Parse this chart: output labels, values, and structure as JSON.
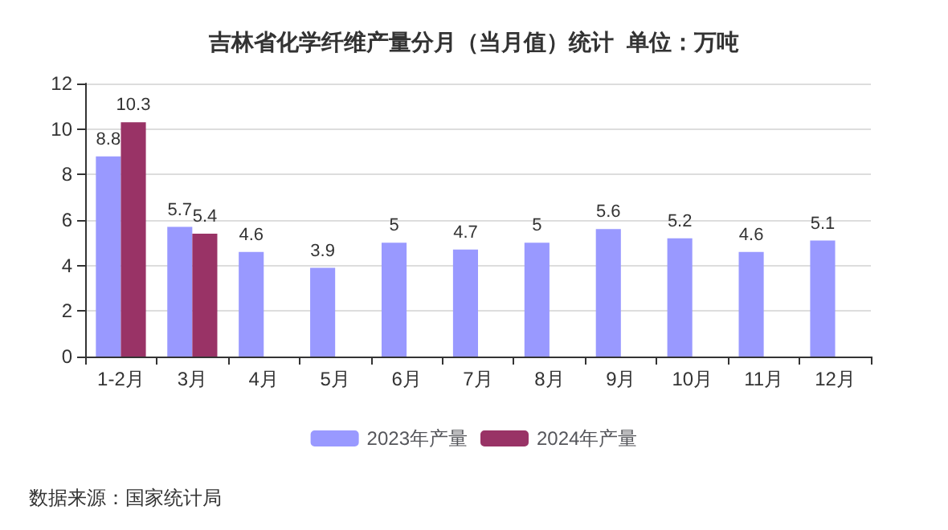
{
  "chart_data": {
    "type": "bar",
    "title": "吉林省化学纤维产量分月（当月值）统计  单位：万吨",
    "categories": [
      "1-2月",
      "3月",
      "4月",
      "5月",
      "6月",
      "7月",
      "8月",
      "9月",
      "10月",
      "11月",
      "12月"
    ],
    "series": [
      {
        "name": "2023年产量",
        "color": "#9999ff",
        "values": [
          8.8,
          5.7,
          4.6,
          3.9,
          5,
          4.7,
          5,
          5.6,
          5.2,
          4.6,
          5.1
        ]
      },
      {
        "name": "2024年产量",
        "color": "#993366",
        "values": [
          10.3,
          5.4,
          null,
          null,
          null,
          null,
          null,
          null,
          null,
          null,
          null
        ]
      }
    ],
    "ylim": [
      0,
      12
    ],
    "yticks": [
      0,
      2,
      4,
      6,
      8,
      10,
      12
    ],
    "grid": "y",
    "legend": "bottom",
    "data_labels": true,
    "annotations": [
      "数据来源：国家统计局"
    ]
  }
}
